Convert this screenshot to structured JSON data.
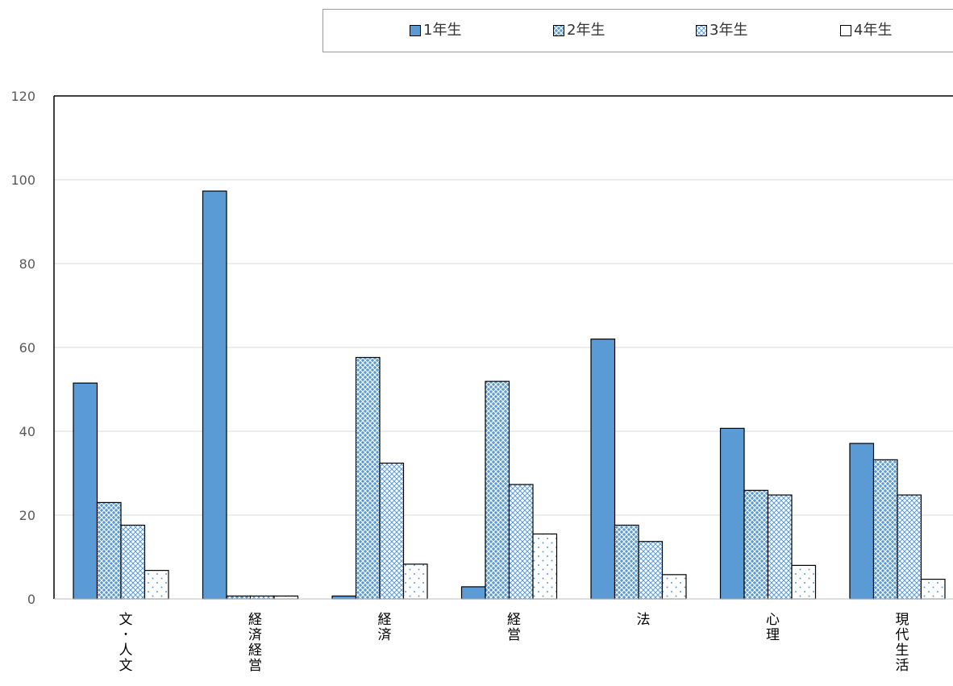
{
  "chart_data": {
    "type": "bar",
    "categories": [
      "文・人文",
      "経済経営",
      "経済",
      "経営",
      "法",
      "心理",
      "現代生活"
    ],
    "series": [
      {
        "name": "1年生",
        "values": [
          51.5,
          97.3,
          0.7,
          2.9,
          62.0,
          40.7,
          37.1
        ],
        "color": "#5b9bd5",
        "pattern": "solid"
      },
      {
        "name": "2年生",
        "values": [
          23.0,
          0.7,
          57.6,
          51.9,
          17.6,
          25.9,
          33.2
        ],
        "color": "#5b9bd5",
        "pattern": "crosshatch-dense"
      },
      {
        "name": "3年生",
        "values": [
          17.6,
          0.7,
          32.4,
          27.3,
          13.7,
          24.8,
          24.8
        ],
        "color": "#5b9bd5",
        "pattern": "crosshatch-light"
      },
      {
        "name": "4年生",
        "values": [
          6.8,
          0.7,
          8.3,
          15.5,
          5.8,
          8.0,
          4.7
        ],
        "color": "#5b9bd5",
        "pattern": "dots"
      }
    ],
    "yticks": [
      "0",
      "20",
      "40",
      "60",
      "80",
      "100",
      "120"
    ],
    "ylim": [
      0,
      120
    ],
    "grid": true,
    "legend": "top",
    "title": "",
    "xlabel": "",
    "ylabel": ""
  }
}
